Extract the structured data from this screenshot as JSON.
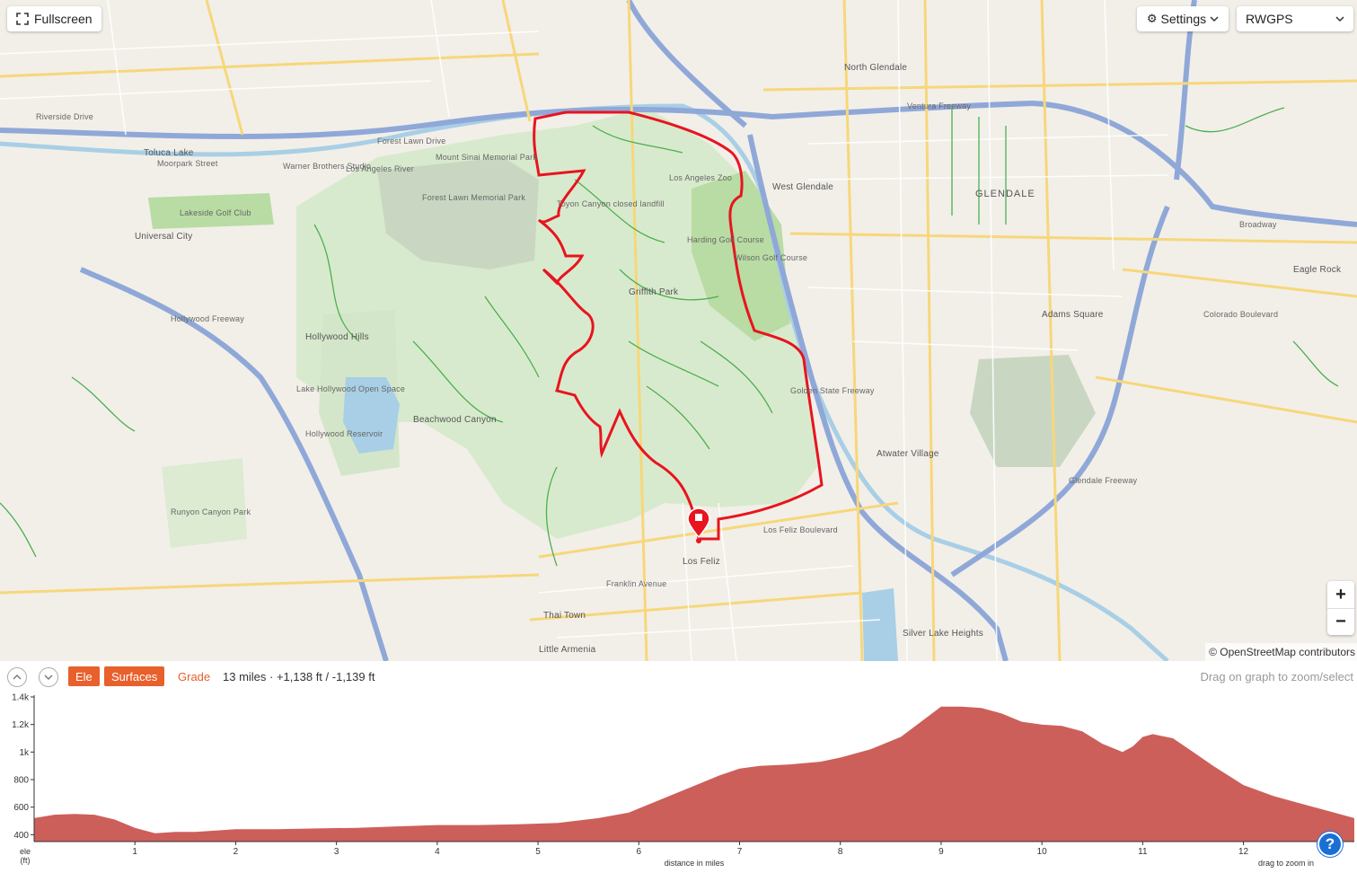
{
  "map": {
    "fullscreen_label": "Fullscreen",
    "settings_label": "Settings",
    "layer_selected": "RWGPS",
    "zoom_in": "+",
    "zoom_out": "−",
    "attribution": "© OpenStreetMap contributors",
    "labels": [
      "Glendale",
      "Griffith Park",
      "Los Feliz",
      "Atwater Village",
      "Adams Square",
      "North Glendale",
      "West Glendale",
      "Universal City",
      "Hollywood Hills",
      "Beachwood Canyon",
      "Forest Lawn Memorial Park",
      "Toyon Canyon closed landfill",
      "Los Angeles Zoo",
      "Harding Golf Course",
      "Wilson Golf Course",
      "Ventura Freeway",
      "Hollywood Freeway",
      "Golden State Freeway",
      "Glendale Freeway",
      "Silver Lake Heights",
      "Thai Town",
      "Little Armenia",
      "Lake Hollywood Open Space",
      "Hollywood Reservoir",
      "Runyon Canyon Park",
      "Eagle Rock",
      "Mount Sinai Memorial Park",
      "Warner Brothers Studio",
      "Lakeside Golf Club",
      "Los Angeles River",
      "Toluca Lake",
      "Moorpark Street",
      "Franklin Avenue",
      "Los Feliz Boulevard",
      "Riverside Drive",
      "Colorado Boulevard",
      "Broadway",
      "Forest Lawn Drive"
    ]
  },
  "panel": {
    "tabs": [
      {
        "label": "Ele",
        "active": true
      },
      {
        "label": "Surfaces",
        "active": true
      },
      {
        "label": "Grade",
        "active": false
      }
    ],
    "stats": "13 miles · +1,138 ft / -1,139 ft",
    "hint": "Drag on graph to zoom/select",
    "help_icon": "?"
  },
  "chart_data": {
    "type": "area",
    "xlabel": "distance in miles",
    "ylabel": "ele\n(ft)",
    "xlim": [
      0,
      13.1
    ],
    "ylim": [
      350,
      1400
    ],
    "x_ticks": [
      1,
      2,
      3,
      4,
      5,
      6,
      7,
      8,
      9,
      10,
      11,
      12
    ],
    "y_ticks": [
      "400",
      "600",
      "800",
      "1k",
      "1.2k",
      "1.4k"
    ],
    "y_tick_values": [
      400,
      600,
      800,
      1000,
      1200,
      1400
    ],
    "corner_hint": "drag to zoom in",
    "fill_color": "#cd5f5a",
    "x": [
      0,
      0.2,
      0.4,
      0.6,
      0.8,
      1.0,
      1.2,
      1.4,
      1.6,
      1.8,
      2.0,
      2.4,
      2.8,
      3.2,
      3.6,
      4.0,
      4.4,
      4.8,
      5.2,
      5.6,
      5.9,
      6.2,
      6.5,
      6.8,
      7.0,
      7.2,
      7.5,
      7.8,
      8.0,
      8.3,
      8.6,
      8.8,
      9.0,
      9.2,
      9.4,
      9.6,
      9.8,
      10.0,
      10.2,
      10.4,
      10.6,
      10.8,
      10.9,
      11.0,
      11.1,
      11.3,
      11.5,
      11.7,
      12.0,
      12.3,
      12.6,
      12.9,
      13.1
    ],
    "y": [
      520,
      545,
      550,
      545,
      510,
      450,
      410,
      420,
      420,
      430,
      440,
      440,
      445,
      450,
      460,
      470,
      470,
      475,
      485,
      520,
      560,
      650,
      740,
      830,
      880,
      900,
      910,
      930,
      960,
      1020,
      1110,
      1220,
      1330,
      1330,
      1320,
      1280,
      1220,
      1200,
      1190,
      1150,
      1060,
      1000,
      1040,
      1110,
      1130,
      1100,
      1000,
      900,
      760,
      680,
      620,
      560,
      520
    ]
  }
}
